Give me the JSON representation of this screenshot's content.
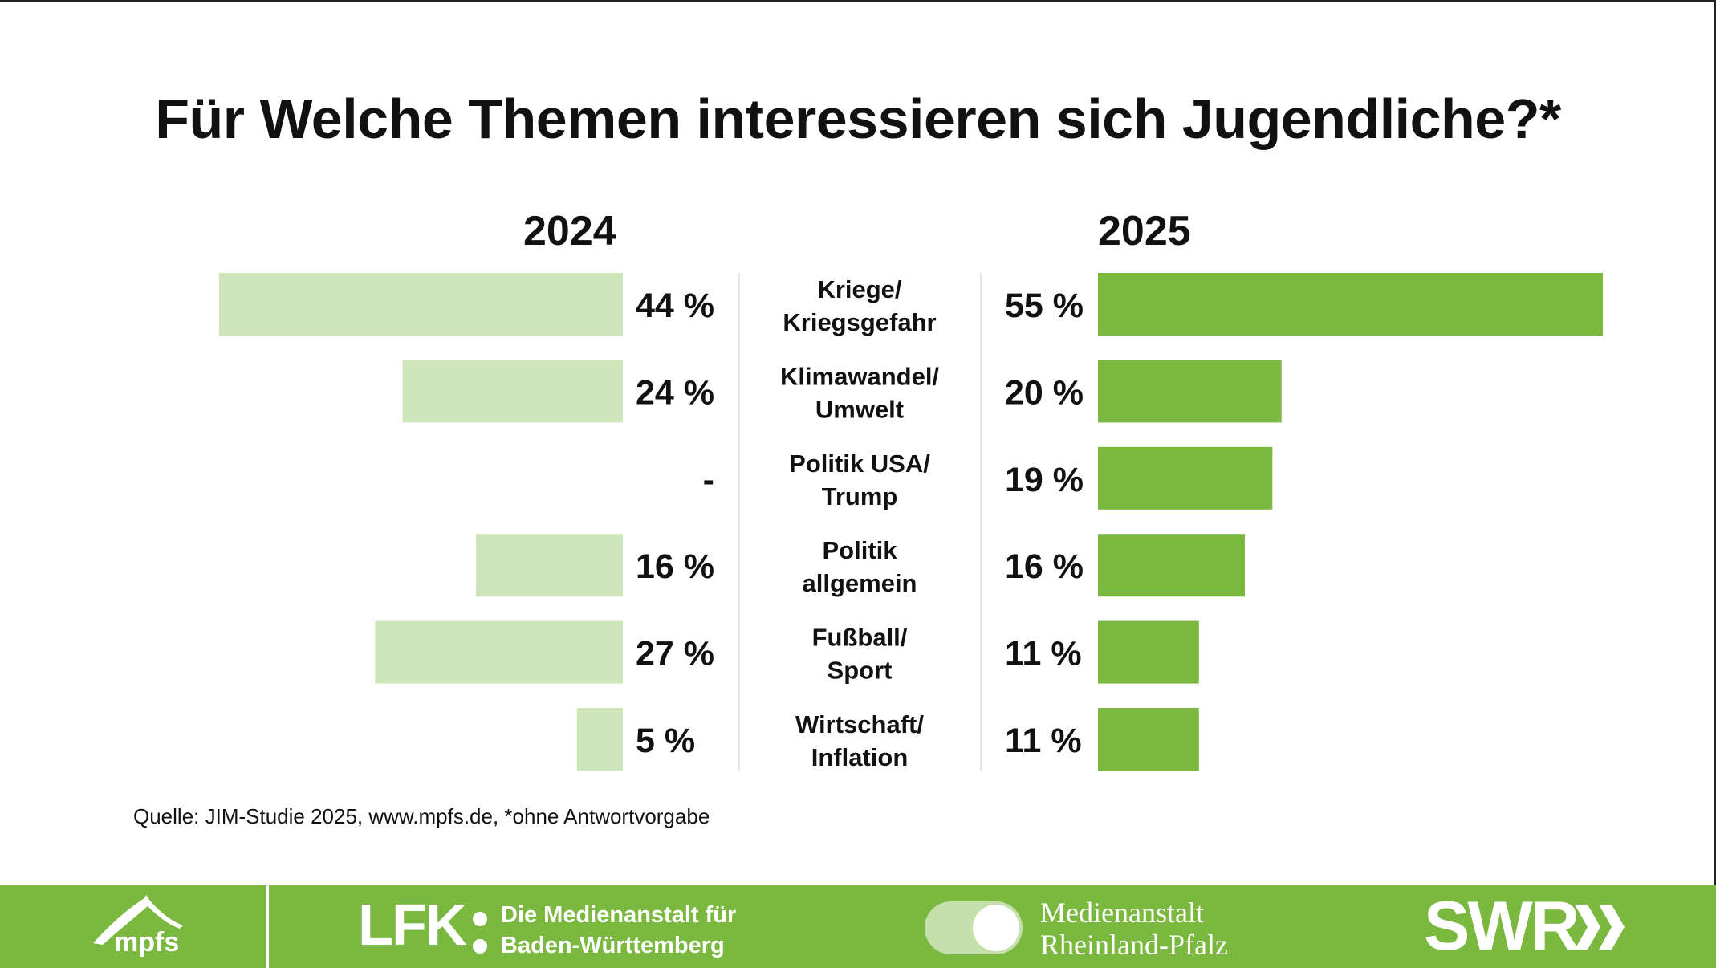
{
  "title": "Für Welche Themen interessieren sich Jugendliche?*",
  "source": "Quelle: JIM-Studie 2025, www.mpfs.de, *ohne Antwortvorgabe",
  "colors": {
    "bar_2024": "#cfe6bb",
    "bar_2025": "#7ab840",
    "footer_bg": "#7ab840"
  },
  "chart_data": {
    "type": "bar",
    "title": "Für Welche Themen interessieren sich Jugendliche?*",
    "orientation": "horizontal-butterfly",
    "unit": "%",
    "categories": [
      [
        "Kriege/",
        "Kriegsgefahr"
      ],
      [
        "Klimawandel/",
        "Umwelt"
      ],
      [
        "Politik USA/",
        "Trump"
      ],
      [
        "Politik",
        "allgemein"
      ],
      [
        "Fußball/",
        "Sport"
      ],
      [
        "Wirtschaft/",
        "Inflation"
      ]
    ],
    "series": [
      {
        "name": "2024",
        "values": [
          44,
          24,
          null,
          16,
          27,
          5
        ],
        "labels": [
          "44 %",
          "24 %",
          "-",
          "16 %",
          "27 %",
          "5 %"
        ]
      },
      {
        "name": "2025",
        "values": [
          55,
          20,
          19,
          16,
          11,
          11
        ],
        "labels": [
          "55 %",
          "20 %",
          "19 %",
          "16 %",
          "11 %",
          "11 %"
        ]
      }
    ],
    "xlim": [
      0,
      55
    ]
  },
  "footer": {
    "mpfs": "mpfs",
    "lfk_mark": "LFK",
    "lfk_line1": "Die Medienanstalt für",
    "lfk_line2": "Baden-Württemberg",
    "mrlp_line1": "Medienanstalt",
    "mrlp_line2": "Rheinland-Pfalz",
    "swr": "SWR"
  }
}
